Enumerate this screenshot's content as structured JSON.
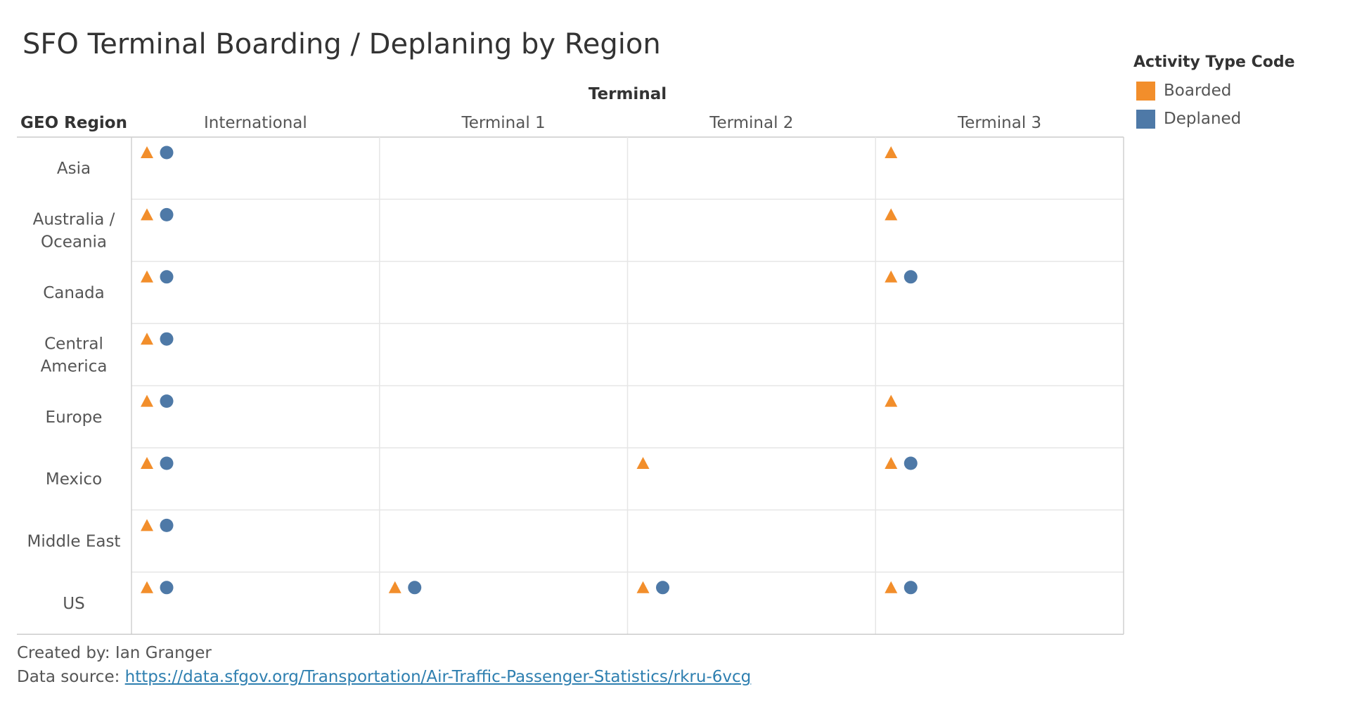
{
  "title": "SFO Terminal Boarding / Deplaning by Region",
  "legend": {
    "title": "Activity Type Code",
    "items": [
      {
        "label": "Boarded",
        "color": "#f28e2b",
        "shape": "triangle"
      },
      {
        "label": "Deplaned",
        "color": "#4e79a7",
        "shape": "circle"
      }
    ]
  },
  "chart_data": {
    "type": "table",
    "column_header": "Terminal",
    "row_header": "GEO Region",
    "columns": [
      "International",
      "Terminal 1",
      "Terminal 2",
      "Terminal 3"
    ],
    "rows": [
      [
        "Asia"
      ],
      [
        "Australia /",
        "Oceania"
      ],
      [
        "Canada"
      ],
      [
        "Central",
        "America"
      ],
      [
        "Europe"
      ],
      [
        "Mexico"
      ],
      [
        "Middle East"
      ],
      [
        "US"
      ]
    ],
    "marks": [
      {
        "row": 0,
        "col": 0,
        "types": [
          "Boarded",
          "Deplaned"
        ]
      },
      {
        "row": 0,
        "col": 3,
        "types": [
          "Boarded"
        ]
      },
      {
        "row": 1,
        "col": 0,
        "types": [
          "Boarded",
          "Deplaned"
        ]
      },
      {
        "row": 1,
        "col": 3,
        "types": [
          "Boarded"
        ]
      },
      {
        "row": 2,
        "col": 0,
        "types": [
          "Boarded",
          "Deplaned"
        ]
      },
      {
        "row": 2,
        "col": 3,
        "types": [
          "Boarded",
          "Deplaned"
        ]
      },
      {
        "row": 3,
        "col": 0,
        "types": [
          "Boarded",
          "Deplaned"
        ]
      },
      {
        "row": 4,
        "col": 0,
        "types": [
          "Boarded",
          "Deplaned"
        ]
      },
      {
        "row": 4,
        "col": 3,
        "types": [
          "Boarded"
        ]
      },
      {
        "row": 5,
        "col": 0,
        "types": [
          "Boarded",
          "Deplaned"
        ]
      },
      {
        "row": 5,
        "col": 2,
        "types": [
          "Boarded"
        ]
      },
      {
        "row": 5,
        "col": 3,
        "types": [
          "Boarded",
          "Deplaned"
        ]
      },
      {
        "row": 6,
        "col": 0,
        "types": [
          "Boarded",
          "Deplaned"
        ]
      },
      {
        "row": 7,
        "col": 0,
        "types": [
          "Boarded",
          "Deplaned"
        ]
      },
      {
        "row": 7,
        "col": 1,
        "types": [
          "Boarded",
          "Deplaned"
        ]
      },
      {
        "row": 7,
        "col": 2,
        "types": [
          "Boarded",
          "Deplaned"
        ]
      },
      {
        "row": 7,
        "col": 3,
        "types": [
          "Boarded",
          "Deplaned"
        ]
      }
    ]
  },
  "footer": {
    "created_by": "Created by: Ian Granger",
    "source_label": "Data source: ",
    "source_link": "https://data.sfgov.org/Transportation/Air-Traffic-Passenger-Statistics/rkru-6vcg"
  }
}
